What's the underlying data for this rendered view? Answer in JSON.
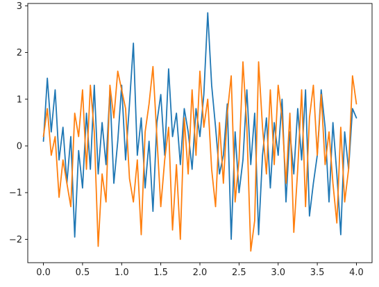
{
  "chart_data": {
    "type": "line",
    "title": "",
    "xlabel": "",
    "ylabel": "",
    "xlim": [
      -0.2,
      4.2
    ],
    "ylim": [
      -2.5,
      3.05
    ],
    "grid": false,
    "x_ticks": [
      0.0,
      0.5,
      1.0,
      1.5,
      2.0,
      2.5,
      3.0,
      3.5,
      4.0
    ],
    "x_tick_labels": [
      "0.0",
      "0.5",
      "1.0",
      "1.5",
      "2.0",
      "2.5",
      "3.0",
      "3.5",
      "4.0"
    ],
    "y_ticks": [
      -2,
      -1,
      0,
      1,
      2,
      3
    ],
    "y_tick_labels": [
      "−2",
      "−1",
      "0",
      "1",
      "2",
      "3"
    ],
    "series": [
      {
        "color": "#1f77b4",
        "x": [
          0.0,
          0.05,
          0.1,
          0.15,
          0.2,
          0.25,
          0.3,
          0.35,
          0.4,
          0.45,
          0.5,
          0.55,
          0.6,
          0.65,
          0.7,
          0.75,
          0.8,
          0.85,
          0.9,
          0.95,
          1.0,
          1.05,
          1.1,
          1.15,
          1.2,
          1.25,
          1.3,
          1.35,
          1.4,
          1.45,
          1.5,
          1.55,
          1.6,
          1.65,
          1.7,
          1.75,
          1.8,
          1.85,
          1.9,
          1.95,
          2.0,
          2.05,
          2.1,
          2.15,
          2.2,
          2.25,
          2.3,
          2.35,
          2.4,
          2.45,
          2.5,
          2.55,
          2.6,
          2.65,
          2.7,
          2.75,
          2.8,
          2.85,
          2.9,
          2.95,
          3.0,
          3.05,
          3.1,
          3.15,
          3.2,
          3.25,
          3.3,
          3.35,
          3.4,
          3.45,
          3.5,
          3.55,
          3.6,
          3.65,
          3.7,
          3.75,
          3.8,
          3.85,
          3.9,
          3.95,
          4.0
        ],
        "y": [
          0.1,
          1.45,
          0.3,
          1.2,
          -0.3,
          0.4,
          -0.8,
          0.2,
          -1.95,
          -0.1,
          -0.9,
          0.7,
          -0.5,
          1.3,
          -0.6,
          0.5,
          -0.4,
          1.2,
          -0.8,
          0.1,
          1.3,
          -0.3,
          0.9,
          2.2,
          -0.2,
          0.6,
          -0.9,
          0.1,
          -1.4,
          0.5,
          1.1,
          -0.2,
          1.65,
          0.2,
          0.7,
          -0.4,
          0.8,
          0.3,
          -0.5,
          0.8,
          0.2,
          1.1,
          2.85,
          1.3,
          0.4,
          -0.6,
          -0.2,
          0.9,
          -2.0,
          0.3,
          -1.0,
          -0.3,
          1.2,
          -0.4,
          0.7,
          -1.9,
          -0.2,
          0.6,
          -0.9,
          0.5,
          -0.2,
          1.0,
          -1.2,
          0.3,
          -0.6,
          0.8,
          -0.3,
          1.2,
          -1.5,
          -0.8,
          -0.2,
          1.2,
          0.4,
          -1.2,
          0.5,
          -0.6,
          -1.9,
          0.3,
          -0.5,
          0.8,
          0.6
        ]
      },
      {
        "color": "#ff7f0e",
        "x": [
          0.0,
          0.05,
          0.1,
          0.15,
          0.2,
          0.25,
          0.3,
          0.35,
          0.4,
          0.45,
          0.5,
          0.55,
          0.6,
          0.65,
          0.7,
          0.75,
          0.8,
          0.85,
          0.9,
          0.95,
          1.0,
          1.05,
          1.1,
          1.15,
          1.2,
          1.25,
          1.3,
          1.35,
          1.4,
          1.45,
          1.5,
          1.55,
          1.6,
          1.65,
          1.7,
          1.75,
          1.8,
          1.85,
          1.9,
          1.95,
          2.0,
          2.05,
          2.1,
          2.15,
          2.2,
          2.25,
          2.3,
          2.35,
          2.4,
          2.45,
          2.5,
          2.55,
          2.6,
          2.65,
          2.7,
          2.75,
          2.8,
          2.85,
          2.9,
          2.95,
          3.0,
          3.05,
          3.1,
          3.15,
          3.2,
          3.25,
          3.3,
          3.35,
          3.4,
          3.45,
          3.5,
          3.55,
          3.6,
          3.65,
          3.7,
          3.75,
          3.8,
          3.85,
          3.9,
          3.95,
          4.0
        ],
        "y": [
          0.2,
          0.8,
          -0.2,
          0.2,
          -1.1,
          -0.3,
          -0.8,
          -1.3,
          0.7,
          0.2,
          1.2,
          -0.5,
          1.3,
          0.3,
          -2.15,
          -0.6,
          -1.2,
          1.3,
          0.6,
          1.6,
          1.2,
          0.8,
          -0.7,
          -1.2,
          -0.3,
          -1.9,
          0.3,
          0.9,
          1.7,
          0.2,
          -1.3,
          -0.3,
          0.4,
          -1.8,
          -0.4,
          -2.0,
          0.6,
          -0.6,
          1.2,
          -0.2,
          1.6,
          0.4,
          1.0,
          -0.5,
          -1.3,
          0.5,
          -0.8,
          0.7,
          1.5,
          -1.2,
          -0.3,
          1.8,
          0.4,
          -2.25,
          -1.6,
          1.8,
          0.4,
          -0.6,
          1.2,
          -0.4,
          1.3,
          0.6,
          -0.8,
          0.7,
          -1.85,
          -0.5,
          1.2,
          -1.3,
          0.6,
          1.3,
          -0.2,
          1.1,
          -0.4,
          0.3,
          -0.8,
          -1.65,
          0.4,
          -1.2,
          -0.5,
          1.5,
          0.9
        ]
      }
    ]
  }
}
